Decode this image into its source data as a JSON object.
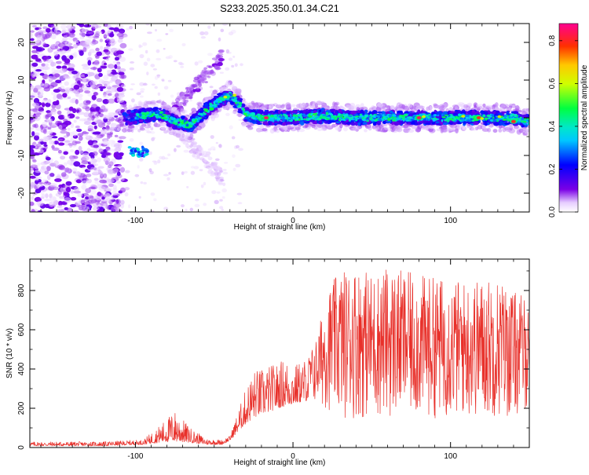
{
  "title": "S233.2025.350.01.34.C21",
  "chart_data": [
    {
      "type": "heatmap",
      "xlabel": "Height of straight line (km)",
      "ylabel": "Frequency (Hz)",
      "xlim": [
        -167,
        150
      ],
      "ylim": [
        -25,
        25
      ],
      "x_ticks": [
        -100,
        0,
        100
      ],
      "y_ticks": [
        -20,
        -10,
        0,
        10,
        20
      ],
      "colorbar": {
        "label": "Normalized spectral amplitude",
        "range": [
          0,
          0.88
        ],
        "ticks": [
          0.0,
          0.2,
          0.4,
          0.6,
          0.8
        ]
      },
      "ridge": {
        "description": "dominant frequency ridge",
        "x": [
          -105,
          -95,
          -85,
          -75,
          -65,
          -55,
          -45,
          -40,
          -35,
          -30,
          -20,
          -10,
          0,
          20,
          40,
          60,
          80,
          100,
          120,
          140,
          148
        ],
        "y": [
          0,
          0.5,
          1,
          -1,
          -2,
          2,
          5,
          6,
          4,
          1,
          0,
          0,
          0,
          0.5,
          0,
          0,
          0,
          0,
          0,
          0,
          -1
        ]
      },
      "peaks": [
        {
          "x": -17,
          "y": 0,
          "amplitude": 0.85
        },
        {
          "x": 80,
          "y": 0,
          "amplitude": 0.85
        },
        {
          "x": 118,
          "y": 0,
          "amplitude": 0.8
        },
        {
          "x": 140,
          "y": -1,
          "amplitude": 0.8
        }
      ]
    },
    {
      "type": "line",
      "xlabel": "Height of straight line (km)",
      "ylabel": "SNR (10 * v/v)",
      "xlim": [
        -167,
        150
      ],
      "ylim": [
        0,
        960
      ],
      "x_ticks": [
        -100,
        0,
        100
      ],
      "y_ticks": [
        0,
        200,
        400,
        600,
        800
      ],
      "color": "#e8302a",
      "envelope": {
        "x": [
          -167,
          -120,
          -95,
          -85,
          -75,
          -65,
          -55,
          -45,
          -40,
          -35,
          -30,
          -25,
          -20,
          -15,
          -10,
          -5,
          0,
          5,
          10,
          15,
          20,
          25,
          30,
          40,
          50,
          60,
          70,
          80,
          90,
          100,
          110,
          120,
          130,
          140,
          150
        ],
        "base": [
          8,
          8,
          15,
          25,
          30,
          25,
          15,
          15,
          35,
          80,
          120,
          150,
          170,
          180,
          200,
          210,
          220,
          230,
          240,
          220,
          200,
          180,
          150,
          150,
          150,
          150,
          150,
          150,
          150,
          150,
          150,
          150,
          150,
          150,
          200
        ],
        "peak": [
          30,
          30,
          40,
          110,
          190,
          100,
          45,
          40,
          60,
          180,
          300,
          400,
          400,
          420,
          430,
          460,
          420,
          440,
          470,
          560,
          750,
          850,
          900,
          930,
          890,
          920,
          900,
          880,
          870,
          860,
          850,
          860,
          870,
          800,
          760
        ]
      }
    }
  ]
}
